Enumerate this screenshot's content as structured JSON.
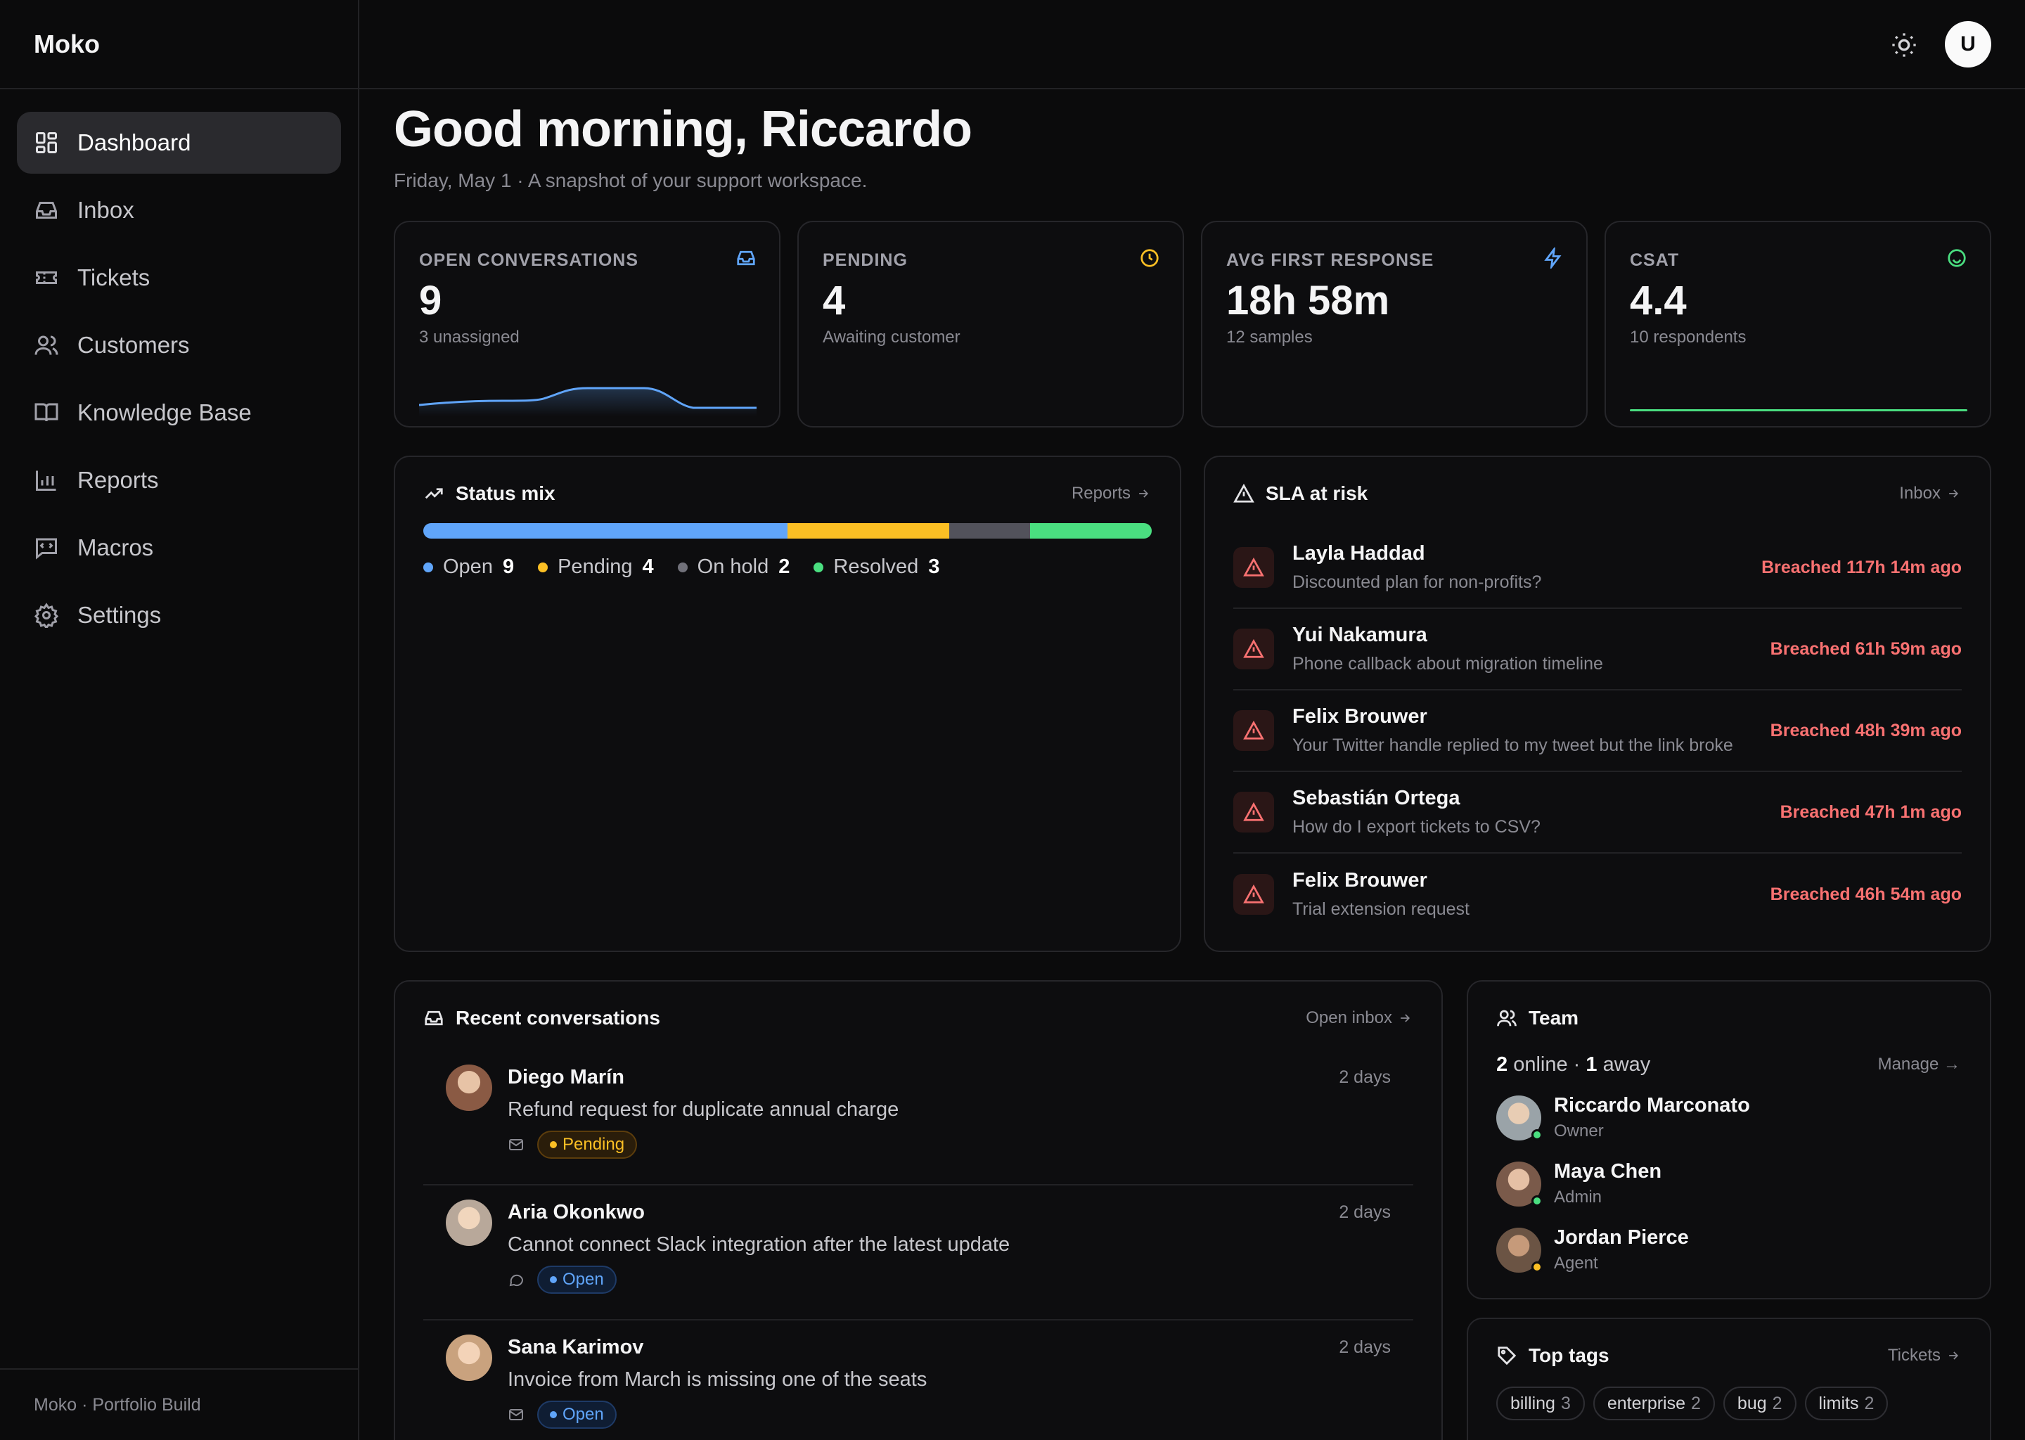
{
  "app": {
    "brand": "Moko",
    "footer": "Moko · Portfolio Build"
  },
  "sidebar": {
    "items": [
      {
        "label": "Dashboard",
        "icon": "dashboard-icon",
        "active": true
      },
      {
        "label": "Inbox",
        "icon": "inbox-icon"
      },
      {
        "label": "Tickets",
        "icon": "ticket-icon"
      },
      {
        "label": "Customers",
        "icon": "users-icon"
      },
      {
        "label": "Knowledge Base",
        "icon": "book-icon"
      },
      {
        "label": "Reports",
        "icon": "bar-chart-icon"
      },
      {
        "label": "Macros",
        "icon": "message-code-icon"
      },
      {
        "label": "Settings",
        "icon": "gear-icon"
      }
    ]
  },
  "topbar": {
    "avatar_initial": "U",
    "theme_icon": "sun-icon"
  },
  "header": {
    "title": "Good morning, Riccardo",
    "subtitle": "Friday, May 1 · A snapshot of your support workspace."
  },
  "stats": [
    {
      "label": "OPEN CONVERSATIONS",
      "value": "9",
      "sub": "3 unassigned",
      "icon": "inbox-icon",
      "color": "#60a5fa"
    },
    {
      "label": "PENDING",
      "value": "4",
      "sub": "Awaiting customer",
      "icon": "clock-icon",
      "color": "#fbbf24"
    },
    {
      "label": "AVG FIRST RESPONSE",
      "value": "18h 58m",
      "sub": "12 samples",
      "icon": "bolt-icon",
      "color": "#60a5fa"
    },
    {
      "label": "CSAT",
      "value": "4.4",
      "sub": "10 respondents",
      "icon": "smile-icon",
      "color": "#4ade80"
    }
  ],
  "status_mix": {
    "title": "Status mix",
    "link": "Reports",
    "segments": [
      {
        "label": "Open",
        "count": 9,
        "color": "#60a5fa"
      },
      {
        "label": "Pending",
        "count": 4,
        "color": "#fbbf24"
      },
      {
        "label": "On hold",
        "count": 2,
        "color": "#52525b"
      },
      {
        "label": "Resolved",
        "count": 3,
        "color": "#4ade80"
      }
    ]
  },
  "sla": {
    "title": "SLA at risk",
    "link": "Inbox",
    "rows": [
      {
        "name": "Layla Haddad",
        "subject": "Discounted plan for non-profits?",
        "status": "Breached 117h 14m ago"
      },
      {
        "name": "Yui Nakamura",
        "subject": "Phone callback about migration timeline",
        "status": "Breached 61h 59m ago"
      },
      {
        "name": "Felix Brouwer",
        "subject": "Your Twitter handle replied to my tweet but the link broke",
        "status": "Breached 48h 39m ago"
      },
      {
        "name": "Sebastián Ortega",
        "subject": "How do I export tickets to CSV?",
        "status": "Breached 47h 1m ago"
      },
      {
        "name": "Felix Brouwer",
        "subject": "Trial extension request",
        "status": "Breached 46h 54m ago"
      }
    ]
  },
  "recent": {
    "title": "Recent conversations",
    "link": "Open inbox",
    "rows": [
      {
        "name": "Diego Marín",
        "time": "2 days",
        "subject": "Refund request for duplicate annual charge",
        "channel": "mail-icon",
        "status": "Pending",
        "avatar_color": "#8a5a44"
      },
      {
        "name": "Aria Okonkwo",
        "time": "2 days",
        "subject": "Cannot connect Slack integration after the latest update",
        "channel": "chat-icon",
        "status": "Open",
        "avatar_color": "#b8a89a"
      },
      {
        "name": "Sana Karimov",
        "time": "2 days",
        "subject": "Invoice from March is missing one of the seats",
        "channel": "mail-icon",
        "status": "Open",
        "avatar_color": "#c9a27e"
      }
    ]
  },
  "team": {
    "title": "Team",
    "online": "2",
    "online_label": "online ·",
    "away": "1",
    "away_label": "away",
    "manage": "Manage →",
    "members": [
      {
        "name": "Riccardo Marconato",
        "role": "Owner",
        "presence": "#4ade80",
        "avatar_color": "#9aa3a8"
      },
      {
        "name": "Maya Chen",
        "role": "Admin",
        "presence": "#4ade80",
        "avatar_color": "#7a5a4a"
      },
      {
        "name": "Jordan Pierce",
        "role": "Agent",
        "presence": "#fbbf24",
        "avatar_color": "#6b5444"
      }
    ]
  },
  "tags": {
    "title": "Top tags",
    "link": "Tickets",
    "items": [
      {
        "label": "billing",
        "count": "3"
      },
      {
        "label": "enterprise",
        "count": "2"
      },
      {
        "label": "bug",
        "count": "2"
      },
      {
        "label": "limits",
        "count": "2"
      }
    ]
  }
}
